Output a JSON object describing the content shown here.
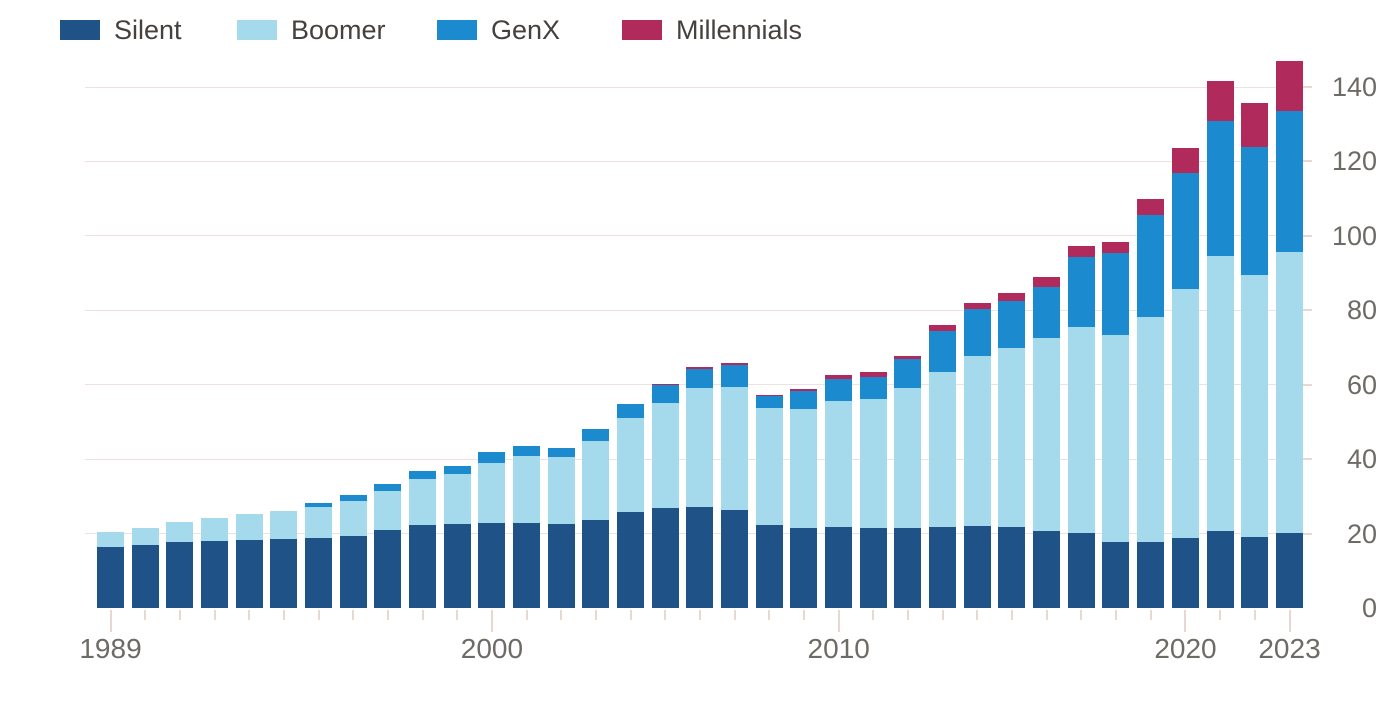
{
  "chart_data": {
    "type": "bar",
    "stacked": true,
    "title": "",
    "xlabel": "",
    "ylabel": "",
    "categories": [
      1989,
      1990,
      1991,
      1992,
      1993,
      1994,
      1995,
      1996,
      1997,
      1998,
      1999,
      2000,
      2001,
      2002,
      2003,
      2004,
      2005,
      2006,
      2007,
      2008,
      2009,
      2010,
      2011,
      2012,
      2013,
      2014,
      2015,
      2016,
      2017,
      2018,
      2019,
      2020,
      2021,
      2022,
      2023
    ],
    "series": [
      {
        "name": "Silent",
        "color": "#1f5286",
        "values": [
          16.5,
          17.0,
          17.7,
          17.9,
          18.3,
          18.5,
          18.9,
          19.4,
          21.0,
          22.3,
          22.5,
          22.8,
          22.8,
          22.5,
          23.7,
          25.7,
          26.8,
          27.2,
          26.3,
          22.3,
          21.4,
          21.7,
          21.4,
          21.6,
          21.9,
          22.1,
          21.9,
          20.7,
          20.3,
          17.7,
          17.7,
          18.9,
          20.7,
          19.2,
          20.1
        ]
      },
      {
        "name": "Boomer",
        "color": "#a5d9ec",
        "values": [
          4.0,
          4.6,
          5.3,
          6.2,
          7.1,
          7.7,
          8.2,
          9.4,
          10.5,
          12.3,
          13.4,
          16.2,
          18.2,
          18.2,
          21.2,
          25.3,
          28.2,
          31.9,
          33.2,
          31.5,
          32.0,
          33.8,
          34.9,
          37.5,
          41.4,
          45.6,
          47.9,
          51.8,
          55.3,
          55.7,
          60.6,
          66.8,
          73.9,
          70.3,
          75.7
        ]
      },
      {
        "name": "GenX",
        "color": "#1b8ace",
        "values": [
          0,
          0,
          0,
          0,
          0,
          0,
          1.2,
          1.5,
          1.7,
          2.2,
          2.2,
          2.9,
          2.7,
          2.4,
          3.2,
          3.8,
          5.0,
          5.2,
          5.8,
          3.2,
          5.0,
          6.0,
          5.9,
          7.8,
          11.2,
          12.6,
          12.8,
          13.9,
          18.8,
          22.1,
          27.3,
          31.2,
          36.4,
          34.5,
          37.8
        ]
      },
      {
        "name": "Millennials",
        "color": "#b02a5c",
        "values": [
          0,
          0,
          0,
          0,
          0,
          0,
          0,
          0,
          0,
          0,
          0,
          0,
          0,
          0,
          0,
          0,
          0.3,
          0.4,
          0.6,
          0.3,
          0.4,
          1.0,
          1.1,
          0.8,
          1.6,
          1.8,
          2.1,
          2.7,
          2.8,
          2.8,
          4.4,
          6.8,
          10.7,
          11.8,
          13.3
        ]
      }
    ],
    "ylim": [
      0,
      150
    ],
    "yticks": [
      0,
      20,
      40,
      60,
      80,
      100,
      120,
      140
    ],
    "ytick_labels": [
      "0",
      "20",
      "40",
      "60",
      "80",
      "100",
      "120",
      "140"
    ],
    "yaxis_side": "right",
    "xtick_labels": [
      "1989",
      "2000",
      "2010",
      "2020",
      "2023"
    ],
    "xtick_label_indices": [
      0,
      11,
      21,
      31,
      34
    ],
    "legend_position": "top-left",
    "grid": "horizontal"
  },
  "style": {
    "background": "#ffffff",
    "gridline_color": "#efe2de",
    "tick_color": "#e9d8d2",
    "axis_text_color": "#6e6a66",
    "legend_text_color": "#45413e"
  }
}
